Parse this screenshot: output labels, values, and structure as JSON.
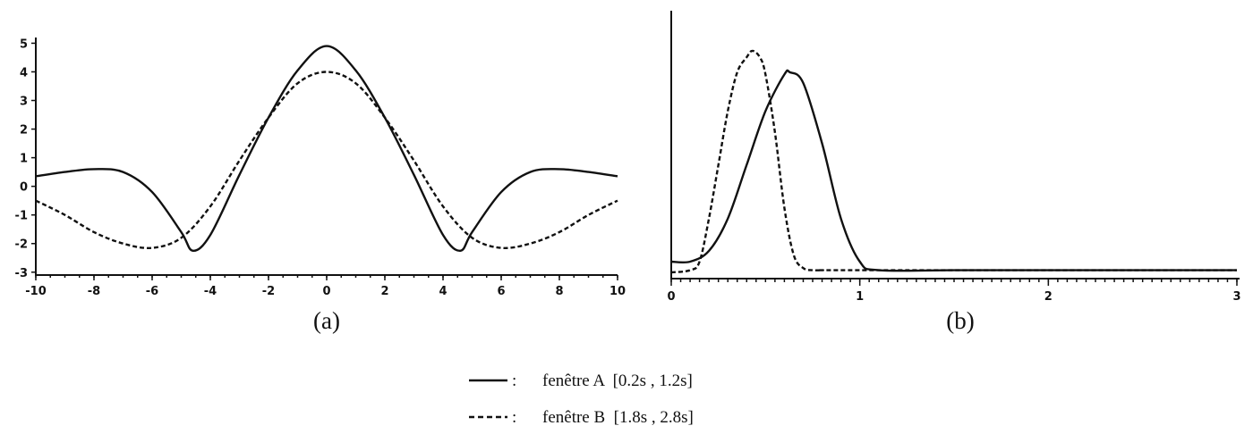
{
  "chart_data": [
    {
      "type": "line",
      "panel_label": "(a)",
      "x_ticks": [
        "-10",
        "-8",
        "-6",
        "-4",
        "-2",
        "0",
        "2",
        "4",
        "6",
        "8",
        "10"
      ],
      "y_ticks": [
        "-3",
        "-2",
        "-1",
        "0",
        "1",
        "2",
        "3",
        "4",
        "5"
      ],
      "xlim": [
        -10,
        10
      ],
      "ylim": [
        -3.1,
        5.2
      ],
      "grid": false,
      "series": [
        {
          "style": "solid",
          "x": [
            -10,
            -9,
            -8,
            -7,
            -6,
            -5,
            -4.6,
            -4,
            -3,
            -2,
            -1,
            0,
            1,
            2,
            3,
            4,
            4.6,
            5,
            6,
            7,
            8,
            9,
            10
          ],
          "y": [
            0.35,
            0.5,
            0.6,
            0.5,
            -0.2,
            -1.6,
            -2.25,
            -1.7,
            0.4,
            2.4,
            4.05,
            4.9,
            4.05,
            2.4,
            0.4,
            -1.7,
            -2.25,
            -1.6,
            -0.2,
            0.5,
            0.6,
            0.5,
            0.35
          ]
        },
        {
          "style": "dashed",
          "x": [
            -10,
            -9,
            -8,
            -7,
            -6,
            -5,
            -4,
            -3,
            -2,
            -1,
            0,
            1,
            2,
            3,
            4,
            5,
            6,
            7,
            8,
            9,
            10
          ],
          "y": [
            -0.5,
            -1.0,
            -1.6,
            -2.0,
            -2.15,
            -1.8,
            -0.7,
            0.9,
            2.4,
            3.6,
            4.0,
            3.6,
            2.4,
            0.9,
            -0.7,
            -1.8,
            -2.15,
            -2.0,
            -1.6,
            -1.0,
            -0.5
          ]
        }
      ]
    },
    {
      "type": "line",
      "panel_label": "(b)",
      "x_ticks": [
        "0",
        "1",
        "2",
        "3"
      ],
      "xlim": [
        0,
        3
      ],
      "ylim": [
        0,
        1.1
      ],
      "grid": false,
      "series": [
        {
          "style": "solid",
          "x": [
            0,
            0.1,
            0.2,
            0.3,
            0.4,
            0.5,
            0.6,
            0.63,
            0.7,
            0.8,
            0.9,
            1.0,
            1.1,
            1.5,
            2.0,
            2.5,
            3.0
          ],
          "y": [
            0.05,
            0.05,
            0.1,
            0.25,
            0.5,
            0.75,
            0.92,
            0.93,
            0.88,
            0.6,
            0.25,
            0.05,
            0.01,
            0.01,
            0.01,
            0.01,
            0.01
          ]
        },
        {
          "style": "dashed",
          "x": [
            0,
            0.1,
            0.15,
            0.2,
            0.25,
            0.3,
            0.35,
            0.4,
            0.43,
            0.47,
            0.5,
            0.55,
            0.6,
            0.65,
            0.7,
            0.75,
            0.8,
            1.0,
            3.0
          ],
          "y": [
            0.0,
            0.01,
            0.05,
            0.25,
            0.5,
            0.75,
            0.93,
            1.0,
            1.03,
            1.0,
            0.92,
            0.65,
            0.3,
            0.08,
            0.02,
            0.01,
            0.01,
            0.01,
            0.01
          ]
        }
      ]
    }
  ],
  "legend": [
    {
      "style": "solid",
      "sep": ":",
      "label": "fenêtre A  [0.2s , 1.2s]"
    },
    {
      "style": "dashed",
      "sep": ":",
      "label": "fenêtre B  [1.8s , 2.8s]"
    }
  ]
}
